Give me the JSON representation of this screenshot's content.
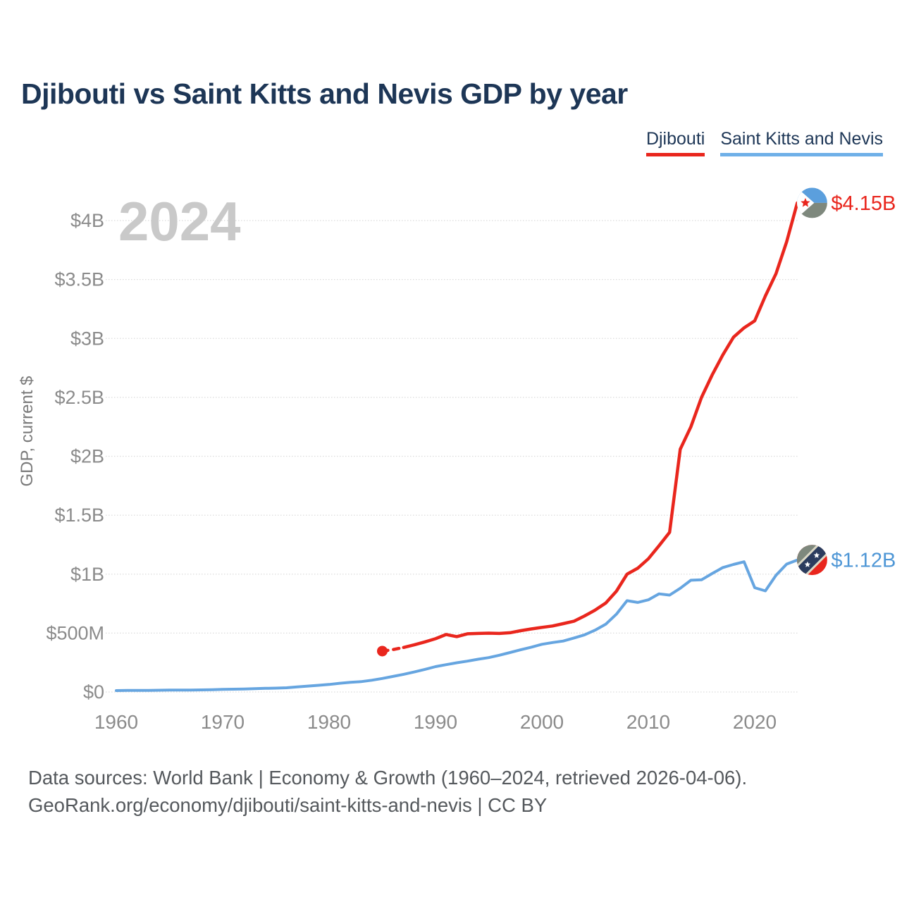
{
  "title": "Djibouti vs Saint Kitts and Nevis GDP by year",
  "legend": [
    {
      "label": "Djibouti",
      "color": "#e9261d"
    },
    {
      "label": "Saint Kitts and Nevis",
      "color": "#6fb0e8"
    }
  ],
  "watermark": "2024",
  "footer": {
    "line1": "Data sources: World Bank | Economy & Growth (1960–2024, retrieved 2026-04-06).",
    "line2": "GeoRank.org/economy/djibouti/saint-kitts-and-nevis | CC BY"
  },
  "colors": {
    "red": "#e9261d",
    "blue": "#66a5e0",
    "blue_label": "#4f97d6",
    "navy": "#1d3656",
    "grid": "#dcdcdc",
    "tick_label": "#8b8b8b",
    "watermark": "#c9c9c9",
    "axis_title": "#7a7a7a",
    "flag_green": "#7e887d",
    "flag_blue": "#5b9fdd",
    "flag_band_navy": "#2b3c5e",
    "flag_band_edge": "#dcd9c6"
  },
  "icons": [
    {
      "name": "djibouti-flag-icon"
    },
    {
      "name": "saint-kitts-nevis-flag-icon"
    }
  ],
  "chart_data": {
    "type": "line",
    "title": "Djibouti vs Saint Kitts and Nevis GDP by year",
    "xlabel": "",
    "ylabel": "GDP, current $",
    "xlim": [
      1960,
      2024
    ],
    "ylim_usd_millions": [
      0,
      4150
    ],
    "grid": true,
    "legend_position": "top-right",
    "x_ticks": [
      1960,
      1970,
      1980,
      1990,
      2000,
      2010,
      2020
    ],
    "y_ticks": [
      {
        "value_m": 0,
        "label": "$0"
      },
      {
        "value_m": 500,
        "label": "$500M"
      },
      {
        "value_m": 1000,
        "label": "$1B"
      },
      {
        "value_m": 1500,
        "label": "$1.5B"
      },
      {
        "value_m": 2000,
        "label": "$2B"
      },
      {
        "value_m": 2500,
        "label": "$2.5B"
      },
      {
        "value_m": 3000,
        "label": "$3B"
      },
      {
        "value_m": 3500,
        "label": "$3.5B"
      },
      {
        "value_m": 4000,
        "label": "$4B"
      }
    ],
    "series": [
      {
        "name": "Saint Kitts and Nevis",
        "color": "#66a5e0",
        "label_color": "#4f97d6",
        "start_year": 1960,
        "end_year": 2024,
        "end_label": "$1.12B",
        "dashed_start": false,
        "values_usd_millions": [
          12,
          13,
          14,
          14,
          15,
          16,
          17,
          17,
          18,
          20,
          22,
          24,
          26,
          28,
          31,
          33,
          36,
          43,
          50,
          57,
          64,
          74,
          82,
          88,
          100,
          115,
          132,
          150,
          170,
          192,
          215,
          232,
          248,
          262,
          278,
          292,
          312,
          335,
          358,
          380,
          405,
          420,
          432,
          458,
          485,
          525,
          575,
          660,
          775,
          760,
          782,
          833,
          822,
          880,
          948,
          952,
          1005,
          1056,
          1082,
          1105,
          885,
          858,
          990,
          1085,
          1120
        ]
      },
      {
        "name": "Djibouti",
        "color": "#e9261d",
        "label_color": "#e9261d",
        "start_year": 1985,
        "end_year": 2024,
        "end_label": "$4.15B",
        "dashed_start": true,
        "dashed_until_year": 1987,
        "values_usd_millions": [
          347,
          360,
          378,
          400,
          425,
          452,
          488,
          470,
          494,
          497,
          499,
          497,
          503,
          520,
          535,
          548,
          560,
          580,
          600,
          645,
          695,
          755,
          855,
          1000,
          1050,
          1130,
          1240,
          1355,
          2060,
          2250,
          2500,
          2690,
          2860,
          3010,
          3090,
          3150,
          3360,
          3550,
          3820,
          4150
        ]
      }
    ]
  }
}
